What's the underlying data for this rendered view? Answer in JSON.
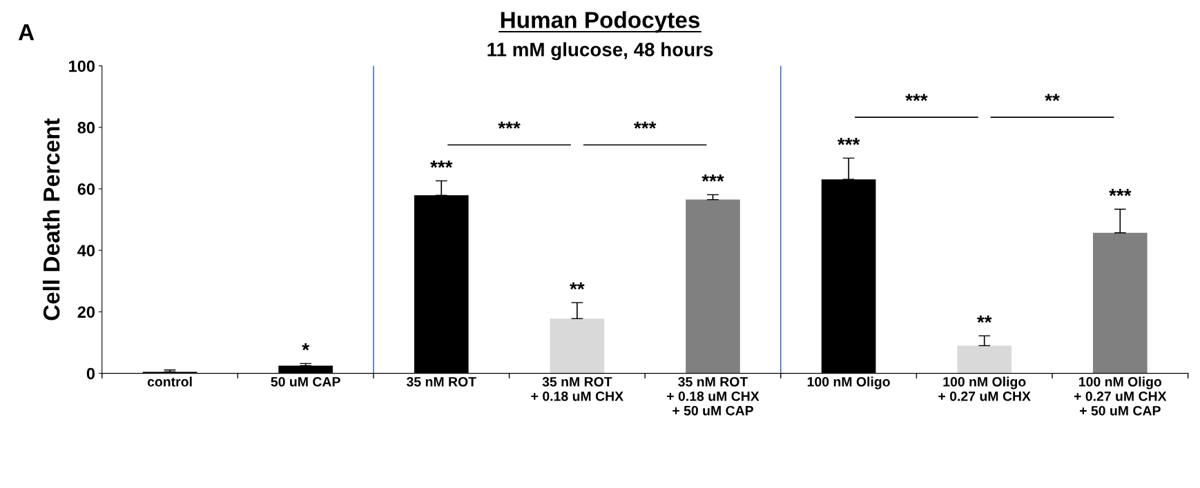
{
  "chart_data": {
    "type": "bar",
    "title": "Human Podocytes",
    "subtitle": "11 mM glucose, 48 hours",
    "ylabel": "Cell Death Percent",
    "categories": [
      "control",
      "50 uM CAP",
      "35 nM ROT",
      "35 nM ROT\n+ 0.18 uM CHX",
      "35 nM ROT\n+ 0.18 uM CHX\n+ 50 uM CAP",
      "100 nM Oligo",
      "100 nM Oligo\n+ 0.27 uM CHX",
      "100 nM Oligo\n+ 0.27 uM CHX\n+ 50 uM CAP"
    ],
    "values": [
      0.5,
      2.5,
      57.9,
      17.8,
      56.5,
      63.1,
      9.0,
      45.7
    ],
    "errors": [
      [
        0.5,
        1.1
      ],
      [
        2.5,
        3.2
      ],
      [
        57.9,
        62.6
      ],
      [
        17.8,
        23.0
      ],
      [
        56.5,
        58.1
      ],
      [
        63.1,
        70.0
      ],
      [
        9.0,
        12.2
      ],
      [
        45.7,
        53.4
      ]
    ],
    "colors": [
      "#000000",
      "#000000",
      "#000000",
      "#d9d9d9",
      "#808080",
      "#000000",
      "#d9d9d9",
      "#808080"
    ],
    "ylim": [
      0,
      100
    ],
    "yticks": [
      0,
      20,
      40,
      60,
      80,
      100
    ],
    "grid": false,
    "annotations": [
      "A",
      "*",
      "***",
      "**",
      "***",
      "***",
      "**",
      "***",
      "***",
      "***",
      "***",
      "**"
    ]
  }
}
